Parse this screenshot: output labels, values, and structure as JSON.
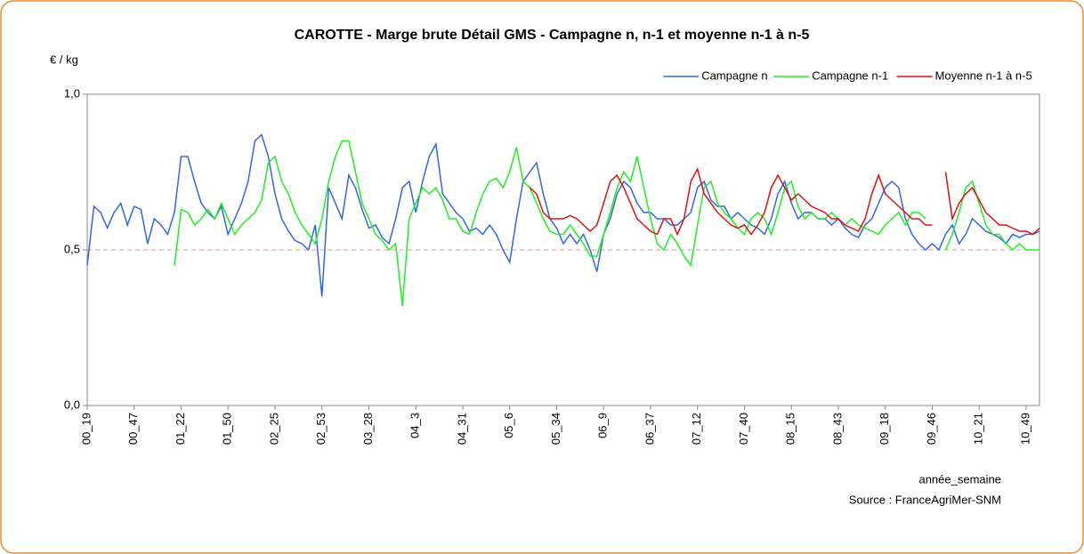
{
  "chart_data": {
    "type": "line",
    "title": "CAROTTE - Marge brute Détail GMS - Campagne n, n-1 et moyenne n-1 à n-5",
    "y_label": "€ / kg",
    "x_label": "année_semaine",
    "source": "Source : FranceAgriMer-SNM",
    "categories": [
      "00_19",
      null,
      null,
      null,
      null,
      null,
      null,
      "00_47",
      null,
      null,
      null,
      null,
      null,
      null,
      "01_22",
      null,
      null,
      null,
      null,
      null,
      null,
      "01_50",
      null,
      null,
      null,
      null,
      null,
      null,
      "02_25",
      null,
      null,
      null,
      null,
      null,
      null,
      "02_53",
      null,
      null,
      null,
      null,
      null,
      null,
      "03_28",
      null,
      null,
      null,
      null,
      null,
      null,
      "04_3",
      null,
      null,
      null,
      null,
      null,
      null,
      "04_31",
      null,
      null,
      null,
      null,
      null,
      null,
      "05_6",
      null,
      null,
      null,
      null,
      null,
      null,
      "05_34",
      null,
      null,
      null,
      null,
      null,
      null,
      "06_9",
      null,
      null,
      null,
      null,
      null,
      null,
      "06_37",
      null,
      null,
      null,
      null,
      null,
      null,
      "07_12",
      null,
      null,
      null,
      null,
      null,
      null,
      "07_40",
      null,
      null,
      null,
      null,
      null,
      null,
      "08_15",
      null,
      null,
      null,
      null,
      null,
      null,
      "08_43",
      null,
      null,
      null,
      null,
      null,
      null,
      "09_18",
      null,
      null,
      null,
      null,
      null,
      null,
      "09_46",
      null,
      null,
      null,
      null,
      null,
      null,
      "10_21",
      null,
      null,
      null,
      null,
      null,
      null,
      "10_49",
      null,
      null
    ],
    "series": [
      {
        "name": "Campagne n",
        "color": "#3366dd",
        "values": [
          0.45,
          0.64,
          0.62,
          0.57,
          0.62,
          0.65,
          0.58,
          0.64,
          0.63,
          0.52,
          0.6,
          0.58,
          0.55,
          0.62,
          0.8,
          0.8,
          0.72,
          0.65,
          0.62,
          0.6,
          0.64,
          0.55,
          0.6,
          0.65,
          0.72,
          0.85,
          0.87,
          0.8,
          0.68,
          0.6,
          0.56,
          0.53,
          0.52,
          0.5,
          0.58,
          0.35,
          0.7,
          0.65,
          0.6,
          0.74,
          0.7,
          0.63,
          0.57,
          0.58,
          0.54,
          0.52,
          0.6,
          0.7,
          0.72,
          0.62,
          0.72,
          0.8,
          0.84,
          0.68,
          0.65,
          0.62,
          0.6,
          0.56,
          0.57,
          0.55,
          0.58,
          0.55,
          0.5,
          0.46,
          0.6,
          0.72,
          0.75,
          0.78,
          0.68,
          0.6,
          0.57,
          0.52,
          0.55,
          0.52,
          0.55,
          0.5,
          0.43,
          0.55,
          0.6,
          0.68,
          0.72,
          0.7,
          0.65,
          0.62,
          0.62,
          0.6,
          0.6,
          0.58,
          0.58,
          0.6,
          0.62,
          0.7,
          0.72,
          0.66,
          0.64,
          0.64,
          0.6,
          0.62,
          0.6,
          0.58,
          0.57,
          0.55,
          0.6,
          0.68,
          0.72,
          0.65,
          0.6,
          0.62,
          0.62,
          0.6,
          0.6,
          0.58,
          0.6,
          0.57,
          0.55,
          0.54,
          0.58,
          0.6,
          0.65,
          0.7,
          0.72,
          0.7,
          0.6,
          0.55,
          0.52,
          0.5,
          0.52,
          0.5,
          0.55,
          0.58,
          0.52,
          0.55,
          0.6,
          0.58,
          0.56,
          0.55,
          0.54,
          0.52,
          0.55,
          0.54,
          0.55,
          0.55,
          0.56
        ]
      },
      {
        "name": "Campagne n-1",
        "color": "#22ee22",
        "values": [
          null,
          null,
          null,
          null,
          null,
          null,
          null,
          null,
          null,
          null,
          null,
          null,
          null,
          0.45,
          0.63,
          0.62,
          0.58,
          0.6,
          0.63,
          0.6,
          0.65,
          0.6,
          0.55,
          0.58,
          0.6,
          0.62,
          0.66,
          0.78,
          0.8,
          0.72,
          0.68,
          0.62,
          0.58,
          0.55,
          0.52,
          0.6,
          0.72,
          0.8,
          0.85,
          0.85,
          0.75,
          0.65,
          0.6,
          0.55,
          0.53,
          0.5,
          0.52,
          0.32,
          0.6,
          0.65,
          0.7,
          0.68,
          0.7,
          0.66,
          0.6,
          0.6,
          0.56,
          0.55,
          0.62,
          0.68,
          0.72,
          0.73,
          0.7,
          0.75,
          0.83,
          0.72,
          0.7,
          0.65,
          0.6,
          0.56,
          0.55,
          0.55,
          0.58,
          0.55,
          0.52,
          0.48,
          0.48,
          0.55,
          0.62,
          0.7,
          0.75,
          0.72,
          0.8,
          0.7,
          0.6,
          0.52,
          0.5,
          0.55,
          0.52,
          0.48,
          0.45,
          0.58,
          0.7,
          0.72,
          0.65,
          0.62,
          0.6,
          0.57,
          0.55,
          0.6,
          0.62,
          0.6,
          0.55,
          0.62,
          0.7,
          0.72,
          0.64,
          0.6,
          0.62,
          0.6,
          0.6,
          0.62,
          0.6,
          0.58,
          0.6,
          0.58,
          0.57,
          0.56,
          0.55,
          0.58,
          0.6,
          0.62,
          0.58,
          0.62,
          0.62,
          0.6,
          null,
          null,
          0.5,
          0.55,
          0.62,
          0.7,
          0.72,
          0.65,
          0.58,
          0.55,
          0.55,
          0.52,
          0.5,
          0.52,
          0.5,
          0.5,
          0.5
        ]
      },
      {
        "name": "Moyenne n-1 à n-5",
        "color": "#dd1111",
        "values": [
          null,
          null,
          null,
          null,
          null,
          null,
          null,
          null,
          null,
          null,
          null,
          null,
          null,
          null,
          null,
          null,
          null,
          null,
          null,
          null,
          null,
          null,
          null,
          null,
          null,
          null,
          null,
          null,
          null,
          null,
          null,
          null,
          null,
          null,
          null,
          null,
          null,
          null,
          null,
          null,
          null,
          null,
          null,
          null,
          null,
          null,
          null,
          null,
          null,
          null,
          null,
          null,
          null,
          null,
          null,
          null,
          null,
          null,
          null,
          null,
          null,
          null,
          null,
          null,
          null,
          null,
          0.7,
          0.68,
          0.62,
          0.6,
          0.6,
          0.6,
          0.61,
          0.6,
          0.58,
          0.56,
          0.58,
          0.65,
          0.72,
          0.74,
          0.7,
          0.65,
          0.6,
          0.58,
          0.56,
          0.55,
          0.6,
          0.6,
          0.55,
          0.6,
          0.72,
          0.76,
          0.68,
          0.65,
          0.62,
          0.6,
          0.58,
          0.57,
          0.58,
          0.55,
          0.58,
          0.62,
          0.7,
          0.74,
          0.7,
          0.66,
          0.68,
          0.66,
          0.64,
          0.63,
          0.62,
          0.6,
          0.6,
          0.58,
          0.57,
          0.56,
          0.6,
          0.68,
          0.74,
          0.68,
          0.66,
          0.64,
          0.62,
          0.6,
          0.6,
          0.58,
          0.58,
          null,
          0.75,
          0.6,
          0.65,
          0.68,
          0.7,
          0.66,
          0.62,
          0.6,
          0.58,
          0.58,
          0.57,
          0.56,
          0.56,
          0.55,
          0.57
        ]
      }
    ],
    "ylim": [
      0,
      1
    ],
    "yticks": [
      {
        "value": 0,
        "label": "0,0"
      },
      {
        "value": 0.5,
        "label": "0,5"
      },
      {
        "value": 1,
        "label": "1,0"
      }
    ],
    "reference_line": 0.5,
    "grid": false,
    "legend": "top-right"
  }
}
